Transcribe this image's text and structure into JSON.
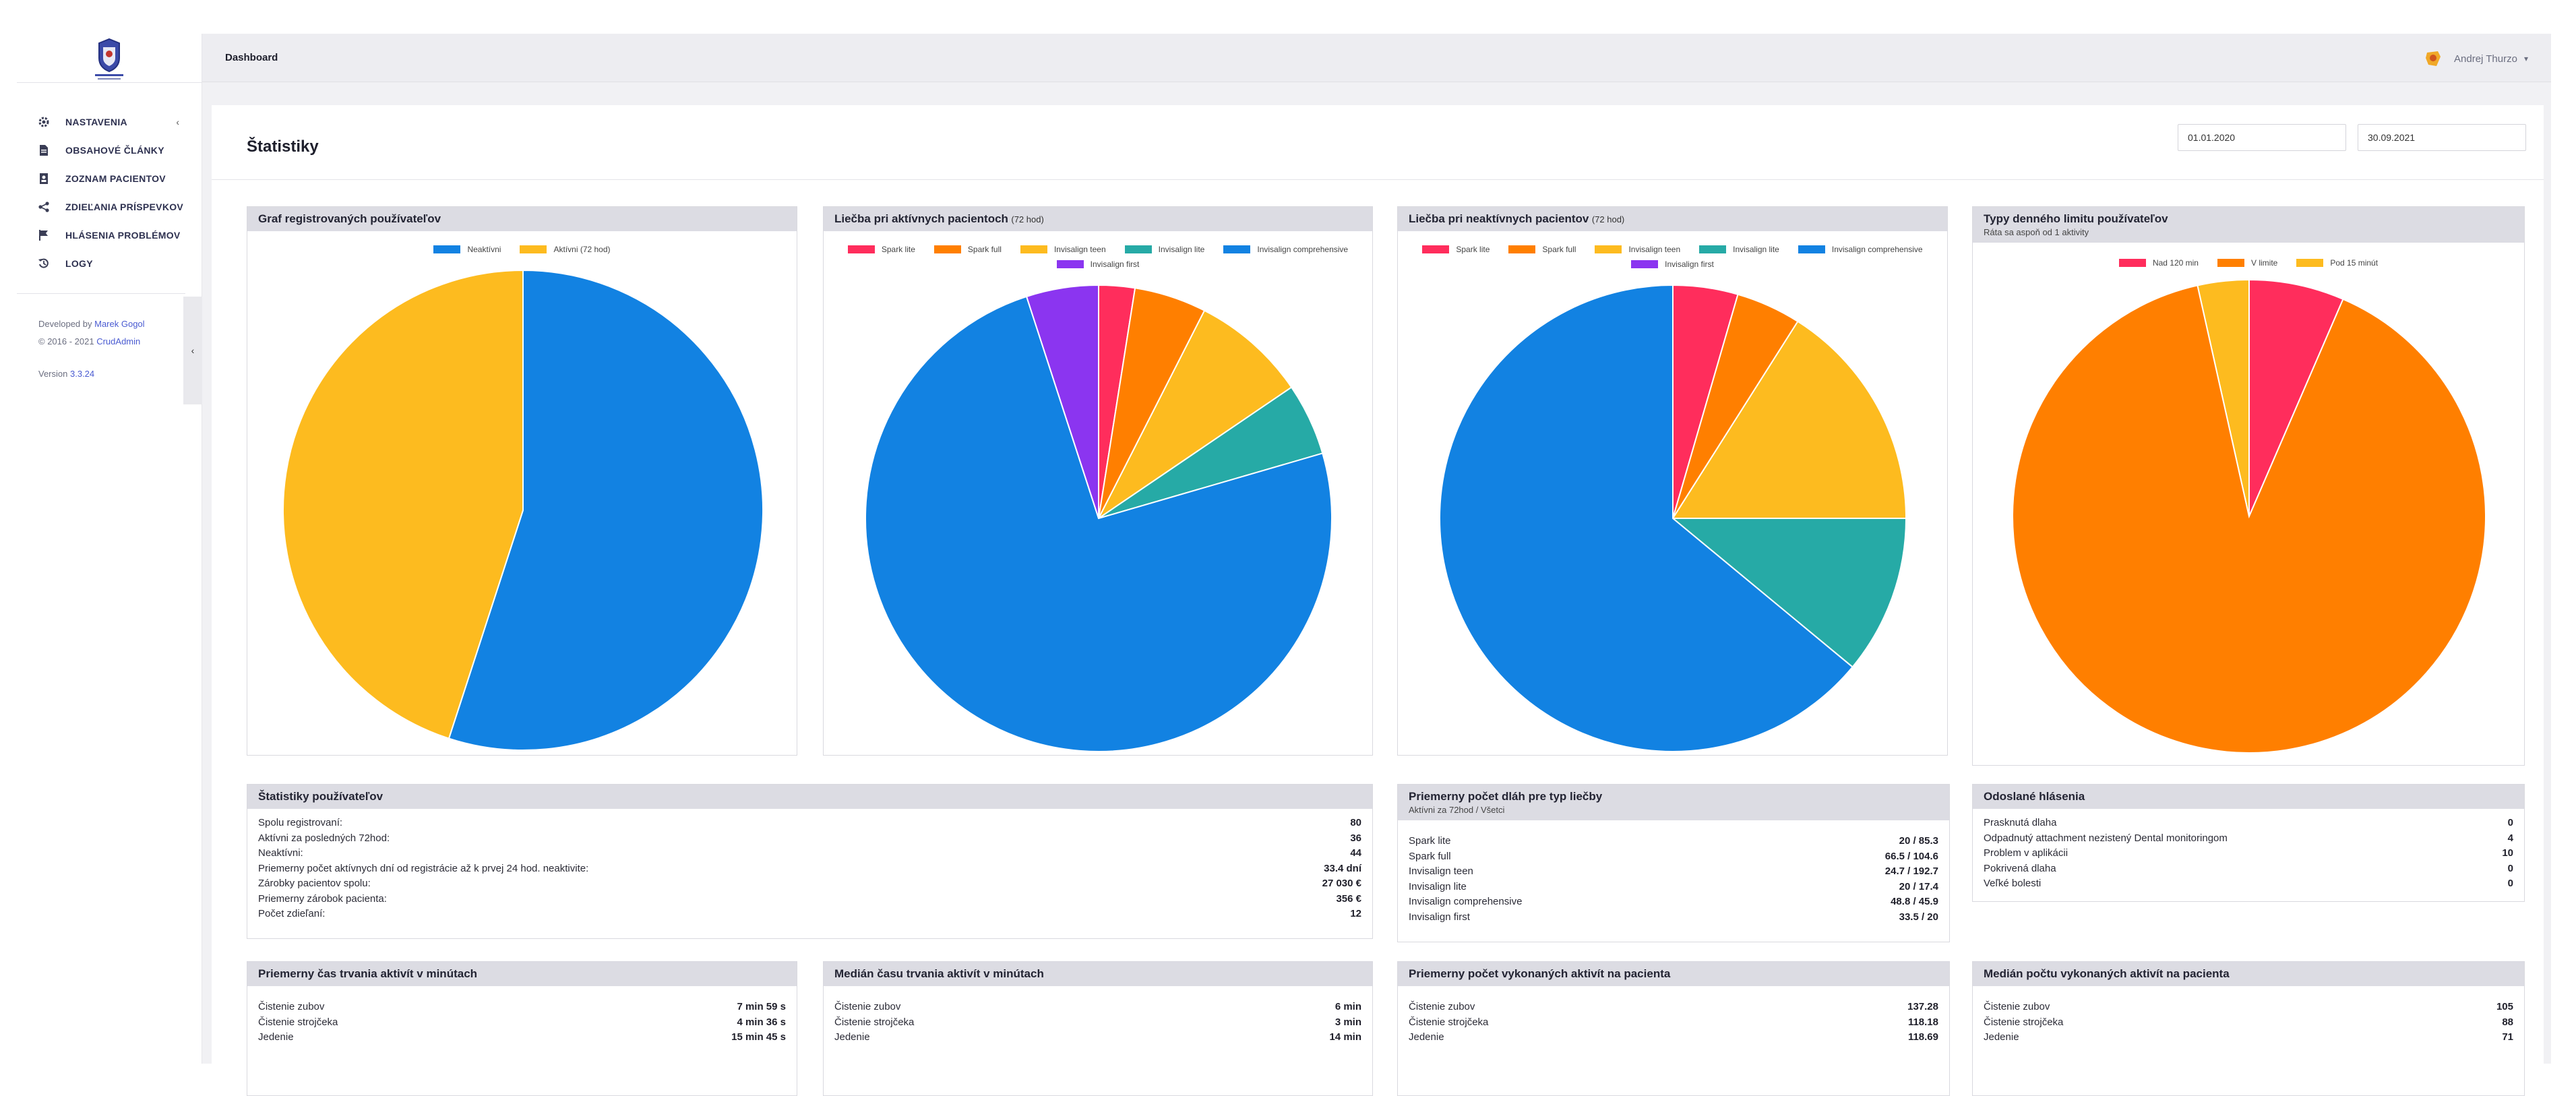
{
  "topbar": {
    "breadcrumb": "Dashboard",
    "user_name": "Andrej Thurzo"
  },
  "sidebar": {
    "items": [
      {
        "label": "NASTAVENIA",
        "icon": "gear-icon"
      },
      {
        "label": "OBSAHOVÉ ČLÁNKY",
        "icon": "document-icon"
      },
      {
        "label": "ZOZNAM PACIENTOV",
        "icon": "address-book-icon"
      },
      {
        "label": "ZDIEĽANIA PRÍSPEVKOV",
        "icon": "share-icon"
      },
      {
        "label": "HLÁSENIA PROBLÉMOV",
        "icon": "flag-icon"
      },
      {
        "label": "LOGY",
        "icon": "history-icon"
      }
    ],
    "developed_by": "Developed by",
    "developer": "Marek Gogol",
    "copyright": "© 2016 - 2021",
    "crud": "CrudAdmin",
    "version_label": "Version",
    "version": "3.3.24"
  },
  "page": {
    "title": "Štatistiky",
    "date_from": "01.01.2020",
    "date_to": "30.09.2021"
  },
  "colors": {
    "red": "#ff2d5c",
    "orange": "#ff7f00",
    "yellow": "#fdbb1f",
    "teal": "#26aaa6",
    "blue": "#1282e2",
    "purple": "#8b35f0"
  },
  "panels": {
    "registered": {
      "title": "Graf registrovaných používateľov"
    },
    "active": {
      "title": "Liečba pri aktívnych pacientoch",
      "suffix": "(72 hod)"
    },
    "inactive": {
      "title": "Liečba pri neaktívnych pacientov",
      "suffix": "(72 hod)"
    },
    "limit": {
      "title": "Typy denného limitu používateľov",
      "subtitle": "Ráta sa aspoň od 1 aktivity"
    }
  },
  "chart_data": [
    {
      "type": "pie",
      "title": "Graf registrovaných používateľov",
      "series": [
        {
          "name": "Neaktívni",
          "value": 44,
          "color": "#1282e2"
        },
        {
          "name": "Aktívni (72 hod)",
          "value": 36,
          "color": "#fdbb1f"
        }
      ]
    },
    {
      "type": "pie",
      "title": "Liečba pri aktívnych pacientoch (72 hod)",
      "series": [
        {
          "name": "Spark lite",
          "value": 2.5,
          "color": "#ff2d5c"
        },
        {
          "name": "Spark full",
          "value": 5,
          "color": "#ff7f00"
        },
        {
          "name": "Invisalign teen",
          "value": 8,
          "color": "#fdbb1f"
        },
        {
          "name": "Invisalign lite",
          "value": 5,
          "color": "#26aaa6"
        },
        {
          "name": "Invisalign comprehensive",
          "value": 74.5,
          "color": "#1282e2"
        },
        {
          "name": "Invisalign first",
          "value": 5,
          "color": "#8b35f0"
        }
      ]
    },
    {
      "type": "pie",
      "title": "Liečba pri neaktívnych pacientov (72 hod)",
      "series": [
        {
          "name": "Spark lite",
          "value": 4.5,
          "color": "#ff2d5c"
        },
        {
          "name": "Spark full",
          "value": 4.5,
          "color": "#ff7f00"
        },
        {
          "name": "Invisalign teen",
          "value": 16,
          "color": "#fdbb1f"
        },
        {
          "name": "Invisalign lite",
          "value": 11,
          "color": "#26aaa6"
        },
        {
          "name": "Invisalign comprehensive",
          "value": 64,
          "color": "#1282e2"
        },
        {
          "name": "Invisalign first",
          "value": 0,
          "color": "#8b35f0"
        }
      ]
    },
    {
      "type": "pie",
      "title": "Typy denného limitu používateľov",
      "series": [
        {
          "name": "Nad 120 min",
          "value": 6.5,
          "color": "#ff2d5c"
        },
        {
          "name": "V limite",
          "value": 90,
          "color": "#ff7f00"
        },
        {
          "name": "Pod 15 minút",
          "value": 3.5,
          "color": "#fdbb1f"
        }
      ]
    }
  ],
  "stats_users": {
    "title": "Štatistiky používateľov",
    "rows": [
      {
        "label": "Spolu registrovaní:",
        "value": "80"
      },
      {
        "label": "Aktívni za posledných 72hod:",
        "value": "36"
      },
      {
        "label": "Neaktívni:",
        "value": "44"
      },
      {
        "label": "Priemerny počet aktívnych dní od registrácie až k prvej 24 hod. neaktivite:",
        "value": "33.4 dní"
      },
      {
        "label": "Zárobky pacientov spolu:",
        "value": "27 030 €"
      },
      {
        "label": "Priemerny zárobok pacienta:",
        "value": "356 €"
      },
      {
        "label": "Počet zdieľaní:",
        "value": "12"
      }
    ]
  },
  "stats_aligners": {
    "title": "Priemerny počet dláh pre typ liečby",
    "subtitle": "Aktívni za 72hod / Všetci",
    "rows": [
      {
        "label": "Spark lite",
        "value": "20 / 85.3"
      },
      {
        "label": "Spark full",
        "value": "66.5 / 104.6"
      },
      {
        "label": "Invisalign teen",
        "value": "24.7 / 192.7"
      },
      {
        "label": "Invisalign lite",
        "value": "20 / 17.4"
      },
      {
        "label": "Invisalign comprehensive",
        "value": "48.8 / 45.9"
      },
      {
        "label": "Invisalign first",
        "value": "33.5 / 20"
      }
    ]
  },
  "stats_reports": {
    "title": "Odoslané hlásenia",
    "rows": [
      {
        "label": "Prasknutá dlaha",
        "value": "0"
      },
      {
        "label": "Odpadnutý attachment nezistený Dental monitoringom",
        "value": "4"
      },
      {
        "label": "Problem v aplikácii",
        "value": "10"
      },
      {
        "label": "Pokrivená dlaha",
        "value": "0"
      },
      {
        "label": "Veľké bolesti",
        "value": "0"
      }
    ]
  },
  "bottom": [
    {
      "title": "Priemerny čas trvania aktivít v minútach",
      "rows": [
        {
          "label": "Čistenie zubov",
          "value": "7 min 59 s"
        },
        {
          "label": "Čistenie strojčeka",
          "value": "4 min 36 s"
        },
        {
          "label": "Jedenie",
          "value": "15 min 45 s"
        }
      ]
    },
    {
      "title": "Medián času trvania aktivít v minútach",
      "rows": [
        {
          "label": "Čistenie zubov",
          "value": "6 min"
        },
        {
          "label": "Čistenie strojčeka",
          "value": "3 min"
        },
        {
          "label": "Jedenie",
          "value": "14 min"
        }
      ]
    },
    {
      "title": "Priemerny počet vykonaných aktivít na pacienta",
      "rows": [
        {
          "label": "Čistenie zubov",
          "value": "137.28"
        },
        {
          "label": "Čistenie strojčeka",
          "value": "118.18"
        },
        {
          "label": "Jedenie",
          "value": "118.69"
        }
      ]
    },
    {
      "title": "Medián počtu vykonaných aktivít na pacienta",
      "rows": [
        {
          "label": "Čistenie zubov",
          "value": "105"
        },
        {
          "label": "Čistenie strojčeka",
          "value": "88"
        },
        {
          "label": "Jedenie",
          "value": "71"
        }
      ]
    }
  ]
}
